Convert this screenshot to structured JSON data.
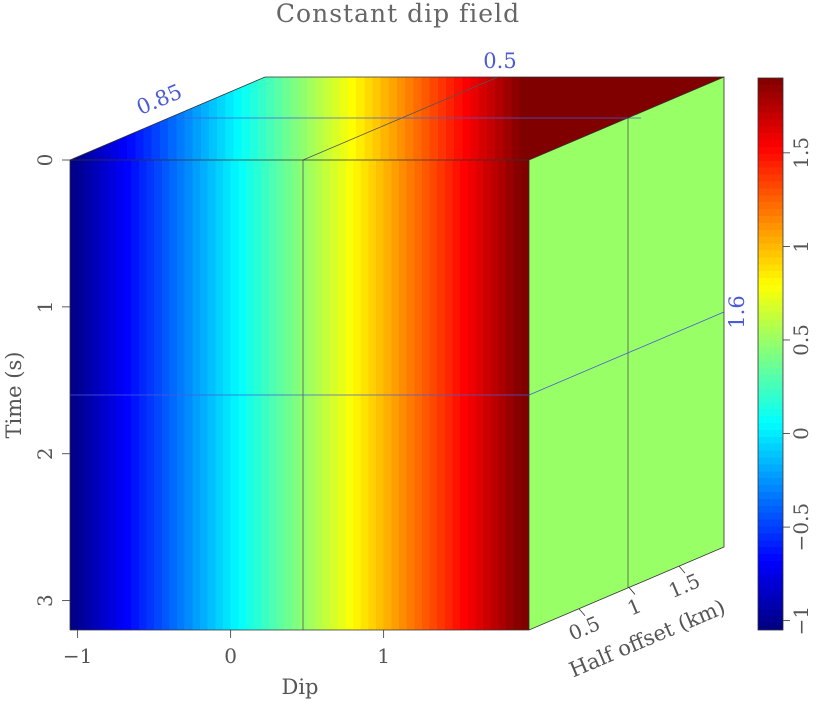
{
  "chart_data": {
    "type": "heatmap",
    "title": "Constant dip field",
    "front_panel": {
      "xlabel": "Dip",
      "ylabel": "Time (s)",
      "x_ticks": [
        "−1",
        "0",
        "1"
      ],
      "x_tick_values": [
        -1,
        0,
        1
      ],
      "y_ticks": [
        "0",
        "1",
        "2",
        "3"
      ],
      "y_tick_values": [
        0,
        1,
        2,
        3
      ],
      "xlim": [
        -1.05,
        1.95
      ],
      "ylim": [
        0,
        3.2
      ],
      "value_description": "value increases linearly with Dip from about -1 at the left edge to about 1.9 at the right edge; constant in Time"
    },
    "side_panel": {
      "xlabel": "Half offset (km)",
      "x_ticks": [
        "0.5",
        "1",
        "1.5"
      ],
      "x_tick_values": [
        0.5,
        1,
        1.5
      ],
      "fill_value": 0.5
    },
    "slice_labels": {
      "dip": "0.5",
      "half_offset": "0.85",
      "time": "1.6"
    },
    "slices": {
      "dip": 0.5,
      "half_offset": 0.85,
      "time": 1.6
    },
    "colorbar": {
      "colormap": "jet",
      "min": -1.05,
      "max": 1.9,
      "ticks": [
        "−1",
        "−0.5",
        "0",
        "0.5",
        "1",
        "1.5"
      ],
      "tick_values": [
        -1,
        -0.5,
        0,
        0.5,
        1,
        1.5
      ]
    },
    "colors": {
      "slice_label": "#4a5bd8",
      "axis_text": "#555555",
      "frame": "#333333"
    }
  }
}
